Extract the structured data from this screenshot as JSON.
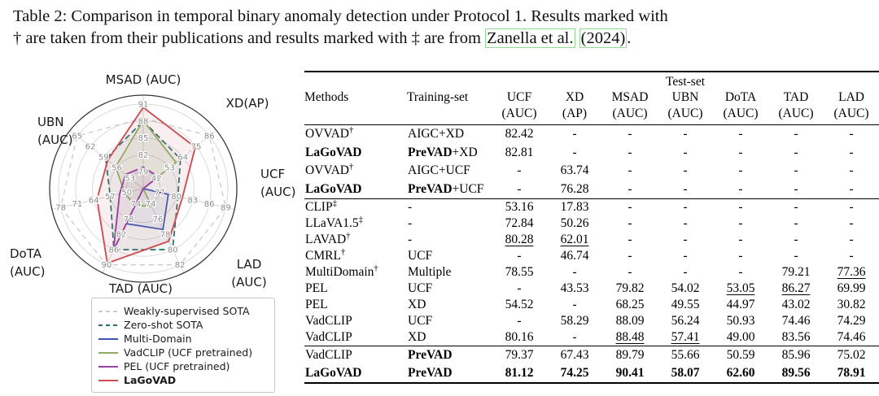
{
  "caption": {
    "line1": "Table 2: Comparison in temporal binary anomaly detection under Protocol 1. Results marked with",
    "line2_prefix": "† are taken from their publications and results marked with ‡ are from",
    "cite_name": "Zanella et al.",
    "cite_year": "(2024)",
    "line2_suffix": ".",
    "citebox_color": "#94d894"
  },
  "chart_data": {
    "type": "radar",
    "legend_position": "below-left",
    "grid": true,
    "axes": [
      {
        "label_lines": [
          "MSAD (AUC)"
        ],
        "ticks": [
          79,
          82,
          85,
          88,
          91
        ],
        "min": 76,
        "max": 91
      },
      {
        "label_lines": [
          "XD(AP)"
        ],
        "ticks": [
          42,
          53,
          64,
          75,
          86
        ],
        "min": 31,
        "max": 86
      },
      {
        "label_lines": [
          "UCF",
          "(AUC)"
        ],
        "ticks": [
          77,
          80,
          83,
          86,
          89
        ],
        "min": 74,
        "max": 89
      },
      {
        "label_lines": [
          "LAD",
          "(AUC)"
        ],
        "ticks": [
          74,
          76,
          78,
          80,
          82
        ],
        "min": 72,
        "max": 82
      },
      {
        "label_lines": [
          "TAD (AUC)"
        ],
        "ticks": [
          74,
          78,
          82,
          86,
          90
        ],
        "min": 70,
        "max": 90
      },
      {
        "label_lines": [
          "DoTA",
          "(AUC)"
        ],
        "ticks": [
          50,
          57,
          64,
          71,
          78
        ],
        "min": 43,
        "max": 78
      },
      {
        "label_lines": [
          "UBN",
          "(AUC)"
        ],
        "ticks": [
          53,
          56,
          59,
          62,
          65
        ],
        "min": 50,
        "max": 65
      }
    ],
    "series": [
      {
        "name": "Weakly-supervised SOTA",
        "color": "#c9c9c9",
        "dash": "6 5",
        "width": 1.3,
        "fill": "none",
        "values": [
          88.5,
          86,
          89,
          82,
          90,
          78,
          65
        ]
      },
      {
        "name": "Zero-shot SOTA",
        "color": "#26706a",
        "dash": "7 4",
        "width": 1.7,
        "fill": "rgba(38,112,106,0.07)",
        "values": [
          88,
          62,
          80.3,
          80,
          86,
          57,
          58.5
        ]
      },
      {
        "name": "Multi-Domain",
        "color": "#3a56b4",
        "dash": "",
        "width": 1.7,
        "fill": "rgba(58,86,180,0.06)",
        "values": [
          null,
          null,
          78.55,
          77.36,
          79.21,
          null,
          null
        ]
      },
      {
        "name": "VadCLIP (UCF pretrained)",
        "color": "#8fac61",
        "dash": "",
        "width": 1.7,
        "fill": "rgba(143,172,97,0.10)",
        "values": [
          88.09,
          58.29,
          null,
          74.29,
          74.46,
          50.93,
          56.24
        ]
      },
      {
        "name": "PEL (UCF pretrained)",
        "color": "#9a3fa5",
        "dash": "",
        "width": 1.9,
        "fill": "rgba(154,63,165,0.07)",
        "values": [
          79.82,
          43.53,
          null,
          69.99,
          86.27,
          53.05,
          54.02
        ]
      },
      {
        "name": "LaGoVAD",
        "color": "#cd4f54",
        "dash": "",
        "width": 1.9,
        "fill": "rgba(205,79,84,0.09)",
        "values": [
          90.41,
          74.25,
          81.12,
          78.91,
          89.56,
          62.6,
          58.07
        ]
      }
    ]
  },
  "legend": {
    "items": [
      {
        "label": "Weakly-supervised SOTA",
        "color": "#c9c9c9",
        "dash": true,
        "bold": false
      },
      {
        "label": "Zero-shot SOTA",
        "color": "#26706a",
        "dash": true,
        "bold": false
      },
      {
        "label": "Multi-Domain",
        "color": "#3a56b4",
        "dash": false,
        "bold": false
      },
      {
        "label": "VadCLIP (UCF pretrained)",
        "color": "#8fac61",
        "dash": false,
        "bold": false
      },
      {
        "label": "PEL (UCF pretrained)",
        "color": "#9a3fa5",
        "dash": false,
        "bold": false
      },
      {
        "label": "LaGoVAD",
        "color": "#cd4f54",
        "dash": false,
        "bold": true
      }
    ]
  },
  "table": {
    "header": {
      "methods": "Methods",
      "training": "Training-set",
      "testset": "Test-set",
      "columns": [
        [
          "UCF",
          "(AUC)"
        ],
        [
          "XD",
          "(AP)"
        ],
        [
          "MSAD",
          "(AUC)"
        ],
        [
          "UBN",
          "(AUC)"
        ],
        [
          "DoTA",
          "(AUC)"
        ],
        [
          "TAD",
          "(AUC)"
        ],
        [
          "LAD",
          "(AUC)"
        ]
      ]
    },
    "groups": [
      {
        "rows": [
          {
            "method": "OVVAD",
            "sup": "†",
            "mbold": 0,
            "training": [
              [
                "AIGC+XD",
                0
              ]
            ],
            "cells": [
              [
                "82.42",
                0,
                0
              ],
              [
                "-",
                0,
                0
              ],
              [
                "-",
                0,
                0
              ],
              [
                "-",
                0,
                0
              ],
              [
                "-",
                0,
                0
              ],
              [
                "-",
                0,
                0
              ],
              [
                "-",
                0,
                0
              ]
            ]
          },
          {
            "method": "LaGoVAD",
            "sup": "",
            "mbold": 1,
            "training": [
              [
                "PreVAD",
                1
              ],
              [
                "+XD",
                0
              ]
            ],
            "cells": [
              [
                "82.81",
                0,
                0
              ],
              [
                "-",
                0,
                0
              ],
              [
                "-",
                0,
                0
              ],
              [
                "-",
                0,
                0
              ],
              [
                "-",
                0,
                0
              ],
              [
                "-",
                0,
                0
              ],
              [
                "-",
                0,
                0
              ]
            ]
          },
          {
            "method": "OVVAD",
            "sup": "†",
            "mbold": 0,
            "training": [
              [
                "AIGC+UCF",
                0
              ]
            ],
            "cells": [
              [
                "-",
                0,
                0
              ],
              [
                "63.74",
                0,
                0
              ],
              [
                "-",
                0,
                0
              ],
              [
                "-",
                0,
                0
              ],
              [
                "-",
                0,
                0
              ],
              [
                "-",
                0,
                0
              ],
              [
                "-",
                0,
                0
              ]
            ]
          },
          {
            "method": "LaGoVAD",
            "sup": "",
            "mbold": 1,
            "training": [
              [
                "PreVAD",
                1
              ],
              [
                "+UCF",
                0
              ]
            ],
            "cells": [
              [
                "-",
                0,
                0
              ],
              [
                "76.28",
                0,
                0
              ],
              [
                "-",
                0,
                0
              ],
              [
                "-",
                0,
                0
              ],
              [
                "-",
                0,
                0
              ],
              [
                "-",
                0,
                0
              ],
              [
                "-",
                0,
                0
              ]
            ]
          }
        ]
      },
      {
        "rows": [
          {
            "method": "CLIP",
            "sup": "‡",
            "mbold": 0,
            "training": [
              [
                "-",
                0
              ]
            ],
            "cells": [
              [
                "53.16",
                0,
                0
              ],
              [
                "17.83",
                0,
                0
              ],
              [
                "-",
                0,
                0
              ],
              [
                "-",
                0,
                0
              ],
              [
                "-",
                0,
                0
              ],
              [
                "-",
                0,
                0
              ],
              [
                "-",
                0,
                0
              ]
            ]
          },
          {
            "method": "LLaVA1.5",
            "sup": "‡",
            "mbold": 0,
            "training": [
              [
                "-",
                0
              ]
            ],
            "cells": [
              [
                "72.84",
                0,
                0
              ],
              [
                "50.26",
                0,
                0
              ],
              [
                "-",
                0,
                0
              ],
              [
                "-",
                0,
                0
              ],
              [
                "-",
                0,
                0
              ],
              [
                "-",
                0,
                0
              ],
              [
                "-",
                0,
                0
              ]
            ]
          },
          {
            "method": "LAVAD",
            "sup": "†",
            "mbold": 0,
            "training": [
              [
                "-",
                0
              ]
            ],
            "cells": [
              [
                "80.28",
                0,
                1
              ],
              [
                "62.01",
                0,
                1
              ],
              [
                "-",
                0,
                0
              ],
              [
                "-",
                0,
                0
              ],
              [
                "-",
                0,
                0
              ],
              [
                "-",
                0,
                0
              ],
              [
                "-",
                0,
                0
              ]
            ]
          },
          {
            "method": "CMRL",
            "sup": "†",
            "mbold": 0,
            "training": [
              [
                "UCF",
                0
              ]
            ],
            "cells": [
              [
                "-",
                0,
                0
              ],
              [
                "46.74",
                0,
                0
              ],
              [
                "-",
                0,
                0
              ],
              [
                "-",
                0,
                0
              ],
              [
                "-",
                0,
                0
              ],
              [
                "-",
                0,
                0
              ],
              [
                "-",
                0,
                0
              ]
            ]
          },
          {
            "method": "MultiDomain",
            "sup": "†",
            "mbold": 0,
            "training": [
              [
                "Multiple",
                0
              ]
            ],
            "cells": [
              [
                "78.55",
                0,
                0
              ],
              [
                "-",
                0,
                0
              ],
              [
                "-",
                0,
                0
              ],
              [
                "-",
                0,
                0
              ],
              [
                "-",
                0,
                0
              ],
              [
                "79.21",
                0,
                0
              ],
              [
                "77.36",
                0,
                1
              ]
            ]
          },
          {
            "method": "PEL",
            "sup": "",
            "mbold": 0,
            "training": [
              [
                "UCF",
                0
              ]
            ],
            "cells": [
              [
                "-",
                0,
                0
              ],
              [
                "43.53",
                0,
                0
              ],
              [
                "79.82",
                0,
                0
              ],
              [
                "54.02",
                0,
                0
              ],
              [
                "53.05",
                0,
                1
              ],
              [
                "86.27",
                0,
                1
              ],
              [
                "69.99",
                0,
                0
              ]
            ]
          },
          {
            "method": "PEL",
            "sup": "",
            "mbold": 0,
            "training": [
              [
                "XD",
                0
              ]
            ],
            "cells": [
              [
                "54.52",
                0,
                0
              ],
              [
                "-",
                0,
                0
              ],
              [
                "68.25",
                0,
                0
              ],
              [
                "49.55",
                0,
                0
              ],
              [
                "44.97",
                0,
                0
              ],
              [
                "43.02",
                0,
                0
              ],
              [
                "30.82",
                0,
                0
              ]
            ]
          },
          {
            "method": "VadCLIP",
            "sup": "",
            "mbold": 0,
            "training": [
              [
                "UCF",
                0
              ]
            ],
            "cells": [
              [
                "-",
                0,
                0
              ],
              [
                "58.29",
                0,
                0
              ],
              [
                "88.09",
                0,
                0
              ],
              [
                "56.24",
                0,
                0
              ],
              [
                "50.93",
                0,
                0
              ],
              [
                "74.46",
                0,
                0
              ],
              [
                "74.29",
                0,
                0
              ]
            ]
          },
          {
            "method": "VadCLIP",
            "sup": "",
            "mbold": 0,
            "training": [
              [
                "XD",
                0
              ]
            ],
            "cells": [
              [
                "80.16",
                0,
                0
              ],
              [
                "-",
                0,
                0
              ],
              [
                "88.48",
                0,
                1
              ],
              [
                "57.41",
                0,
                1
              ],
              [
                "49.00",
                0,
                0
              ],
              [
                "83.56",
                0,
                0
              ],
              [
                "74.46",
                0,
                0
              ]
            ]
          }
        ]
      },
      {
        "rows": [
          {
            "method": "VadCLIP",
            "sup": "",
            "mbold": 0,
            "training": [
              [
                "PreVAD",
                1
              ]
            ],
            "cells": [
              [
                "79.37",
                0,
                0
              ],
              [
                "67.43",
                0,
                0
              ],
              [
                "89.79",
                0,
                0
              ],
              [
                "55.66",
                0,
                0
              ],
              [
                "50.59",
                0,
                0
              ],
              [
                "85.96",
                0,
                0
              ],
              [
                "75.02",
                0,
                0
              ]
            ]
          },
          {
            "method": "LaGoVAD",
            "sup": "",
            "mbold": 1,
            "training": [
              [
                "PreVAD",
                1
              ]
            ],
            "cells": [
              [
                "81.12",
                1,
                0
              ],
              [
                "74.25",
                1,
                0
              ],
              [
                "90.41",
                1,
                0
              ],
              [
                "58.07",
                1,
                0
              ],
              [
                "62.60",
                1,
                0
              ],
              [
                "89.56",
                1,
                0
              ],
              [
                "78.91",
                1,
                0
              ]
            ]
          }
        ]
      }
    ]
  }
}
